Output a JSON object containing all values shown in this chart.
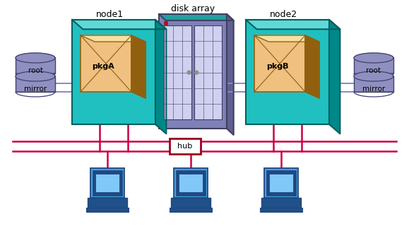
{
  "bg_color": "#ffffff",
  "teal_color": "#20c0c0",
  "teal_dark": "#006060",
  "teal_light": "#60d8d8",
  "teal_side": "#008888",
  "box_color": "#f0c080",
  "box_dark": "#906010",
  "box_light": "#f8e0a0",
  "disk_array_body": "#8080b8",
  "disk_array_light": "#c0c0e0",
  "disk_array_door": "#d0d0f0",
  "disk_array_dark": "#404060",
  "disk_array_top": "#20a0a0",
  "red_line": "#cc0040",
  "blue_line": "#8888cc",
  "hub_border": "#990022",
  "hub_fill": "#ffffff",
  "disk_color": "#9090c0",
  "disk_dark": "#404070",
  "disk_light": "#b0b0d8",
  "computer_body": "#40a0e0",
  "computer_dark": "#204880",
  "computer_screen": "#80c8f8",
  "computer_base": "#205088",
  "node1_label": "node1",
  "node2_label": "node2",
  "disk_array_label": "disk array",
  "pkgA_label": "pkgA",
  "pkgB_label": "pkgB",
  "hub_label": "hub",
  "root_label": "root",
  "mirror_label": "mirror",
  "figw": 5.79,
  "figh": 3.44,
  "dpi": 100
}
